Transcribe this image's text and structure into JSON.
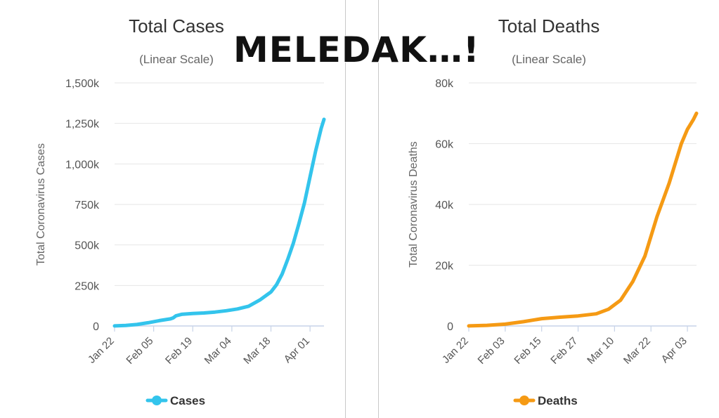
{
  "overlay_text": "MELEDAK…!",
  "colors": {
    "cases": "#33c4ec",
    "deaths": "#f59a14",
    "grid": "#e6e6e6",
    "axis_line": "#c7d3e8",
    "text": "#555555"
  },
  "chart_data": [
    {
      "type": "line",
      "title": "Total Cases",
      "subtitle": "(Linear Scale)",
      "ylabel": "Total Coronavirus Cases",
      "xlabel": "",
      "ylim": [
        0,
        1500000
      ],
      "yticks": [
        0,
        250000,
        500000,
        750000,
        1000000,
        1250000,
        1500000
      ],
      "ytick_labels": [
        "0",
        "250k",
        "500k",
        "750k",
        "1,000k",
        "1,250k",
        "1,500k"
      ],
      "xlim": [
        0,
        75
      ],
      "xticks": [
        0,
        14,
        28,
        42,
        56,
        70
      ],
      "xtick_labels": [
        "Jan 22",
        "Feb 05",
        "Feb 19",
        "Mar 04",
        "Mar 18",
        "Apr 01"
      ],
      "legend": "bottom-center",
      "series": [
        {
          "name": "Cases",
          "color_key": "cases",
          "x": [
            0,
            4,
            8,
            12,
            16,
            20,
            21,
            22,
            24,
            28,
            32,
            36,
            40,
            44,
            48,
            52,
            56,
            58,
            60,
            62,
            64,
            66,
            68,
            70,
            72,
            74,
            75
          ],
          "y": [
            600,
            3000,
            9000,
            20000,
            33000,
            44000,
            50000,
            63000,
            72000,
            77000,
            80000,
            86000,
            94000,
            105000,
            122000,
            160000,
            210000,
            255000,
            320000,
            410000,
            510000,
            630000,
            760000,
            920000,
            1080000,
            1220000,
            1275000
          ]
        }
      ]
    },
    {
      "type": "line",
      "title": "Total Deaths",
      "subtitle": "(Linear Scale)",
      "ylabel": "Total Coronavirus Deaths",
      "xlabel": "",
      "ylim": [
        0,
        80000
      ],
      "yticks": [
        0,
        20000,
        40000,
        60000,
        80000
      ],
      "ytick_labels": [
        "0",
        "20k",
        "40k",
        "60k",
        "80k"
      ],
      "xlim": [
        0,
        75
      ],
      "xticks": [
        0,
        12,
        24,
        36,
        48,
        60,
        72
      ],
      "xtick_labels": [
        "Jan 22",
        "Feb 03",
        "Feb 15",
        "Feb 27",
        "Mar 10",
        "Mar 22",
        "Apr 03"
      ],
      "legend": "bottom-center",
      "series": [
        {
          "name": "Deaths",
          "color_key": "deaths",
          "x": [
            0,
            6,
            12,
            18,
            24,
            30,
            36,
            42,
            46,
            50,
            54,
            58,
            62,
            66,
            70,
            72,
            74,
            75
          ],
          "y": [
            17,
            200,
            600,
            1400,
            2400,
            2900,
            3300,
            4000,
            5500,
            8500,
            14600,
            23000,
            36000,
            47000,
            60000,
            64700,
            68000,
            70000
          ]
        }
      ]
    }
  ]
}
